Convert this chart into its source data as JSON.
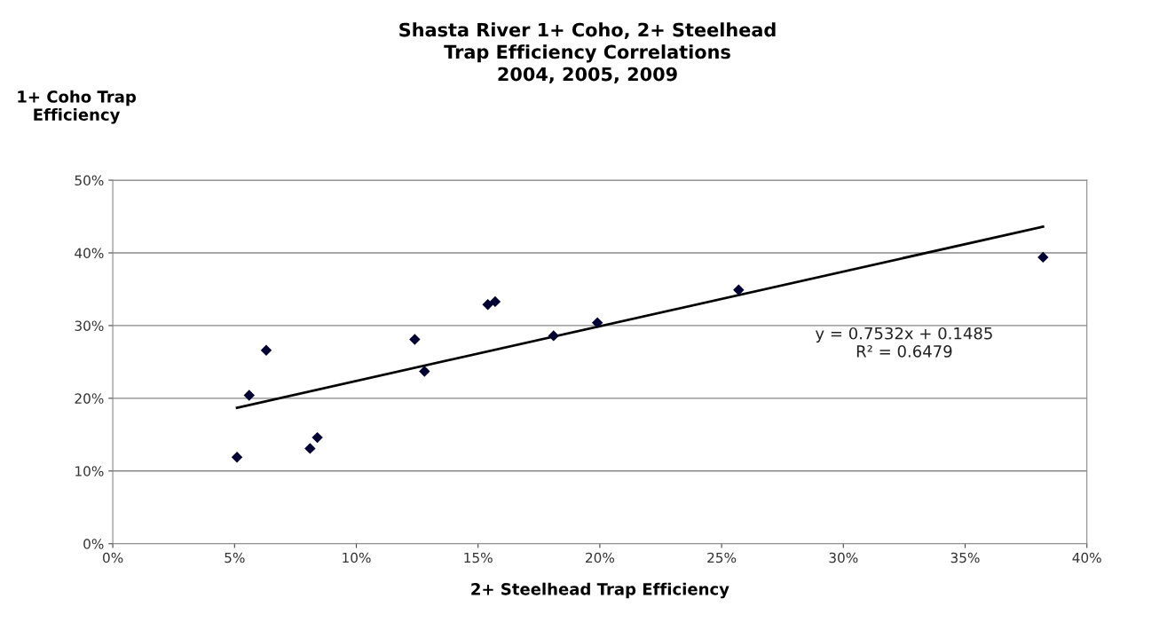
{
  "chart_data": {
    "type": "scatter",
    "title": "Shasta River 1+ Coho, 2+ Steelhead\nTrap Efficiency Correlations\n2004, 2005, 2009",
    "xlabel": "2+ Steelhead Trap Efficiency",
    "ylabel": "1+ Coho Trap\nEfficiency",
    "series": [
      {
        "color": "#000033",
        "marker": "diamond",
        "x": [
          5.1,
          5.6,
          6.3,
          8.1,
          8.4,
          12.4,
          12.8,
          15.4,
          15.7,
          18.1,
          19.9,
          25.7,
          38.2
        ],
        "values": [
          11.9,
          20.4,
          26.6,
          13.1,
          14.6,
          28.1,
          23.7,
          32.9,
          33.3,
          28.6,
          30.4,
          34.9,
          39.4
        ]
      },
      {
        "type": "line",
        "color": "#000000",
        "marker": "none",
        "line_style": "solid",
        "x": [
          5.1,
          38.2
        ],
        "values": [
          18.7,
          43.6
        ]
      }
    ],
    "annotations": [
      "y = 0.7532x + 0.1485\nR² = 0.6479"
    ],
    "xlim": [
      0,
      40
    ],
    "ylim": [
      0,
      50
    ],
    "xticks": [
      {
        "value": 0,
        "label": "0%"
      },
      {
        "value": 5,
        "label": "5%"
      },
      {
        "value": 10,
        "label": "10%"
      },
      {
        "value": 15,
        "label": "15%"
      },
      {
        "value": 20,
        "label": "20%"
      },
      {
        "value": 25,
        "label": "25%"
      },
      {
        "value": 30,
        "label": "30%"
      },
      {
        "value": 35,
        "label": "35%"
      },
      {
        "value": 40,
        "label": "40%"
      }
    ],
    "yticks": [
      {
        "value": 0,
        "label": "0%"
      },
      {
        "value": 10,
        "label": "10%"
      },
      {
        "value": 20,
        "label": "20%"
      },
      {
        "value": 30,
        "label": "30%"
      },
      {
        "value": 40,
        "label": "40%"
      },
      {
        "value": 50,
        "label": "50%"
      }
    ],
    "grid": "y",
    "legend": false
  }
}
